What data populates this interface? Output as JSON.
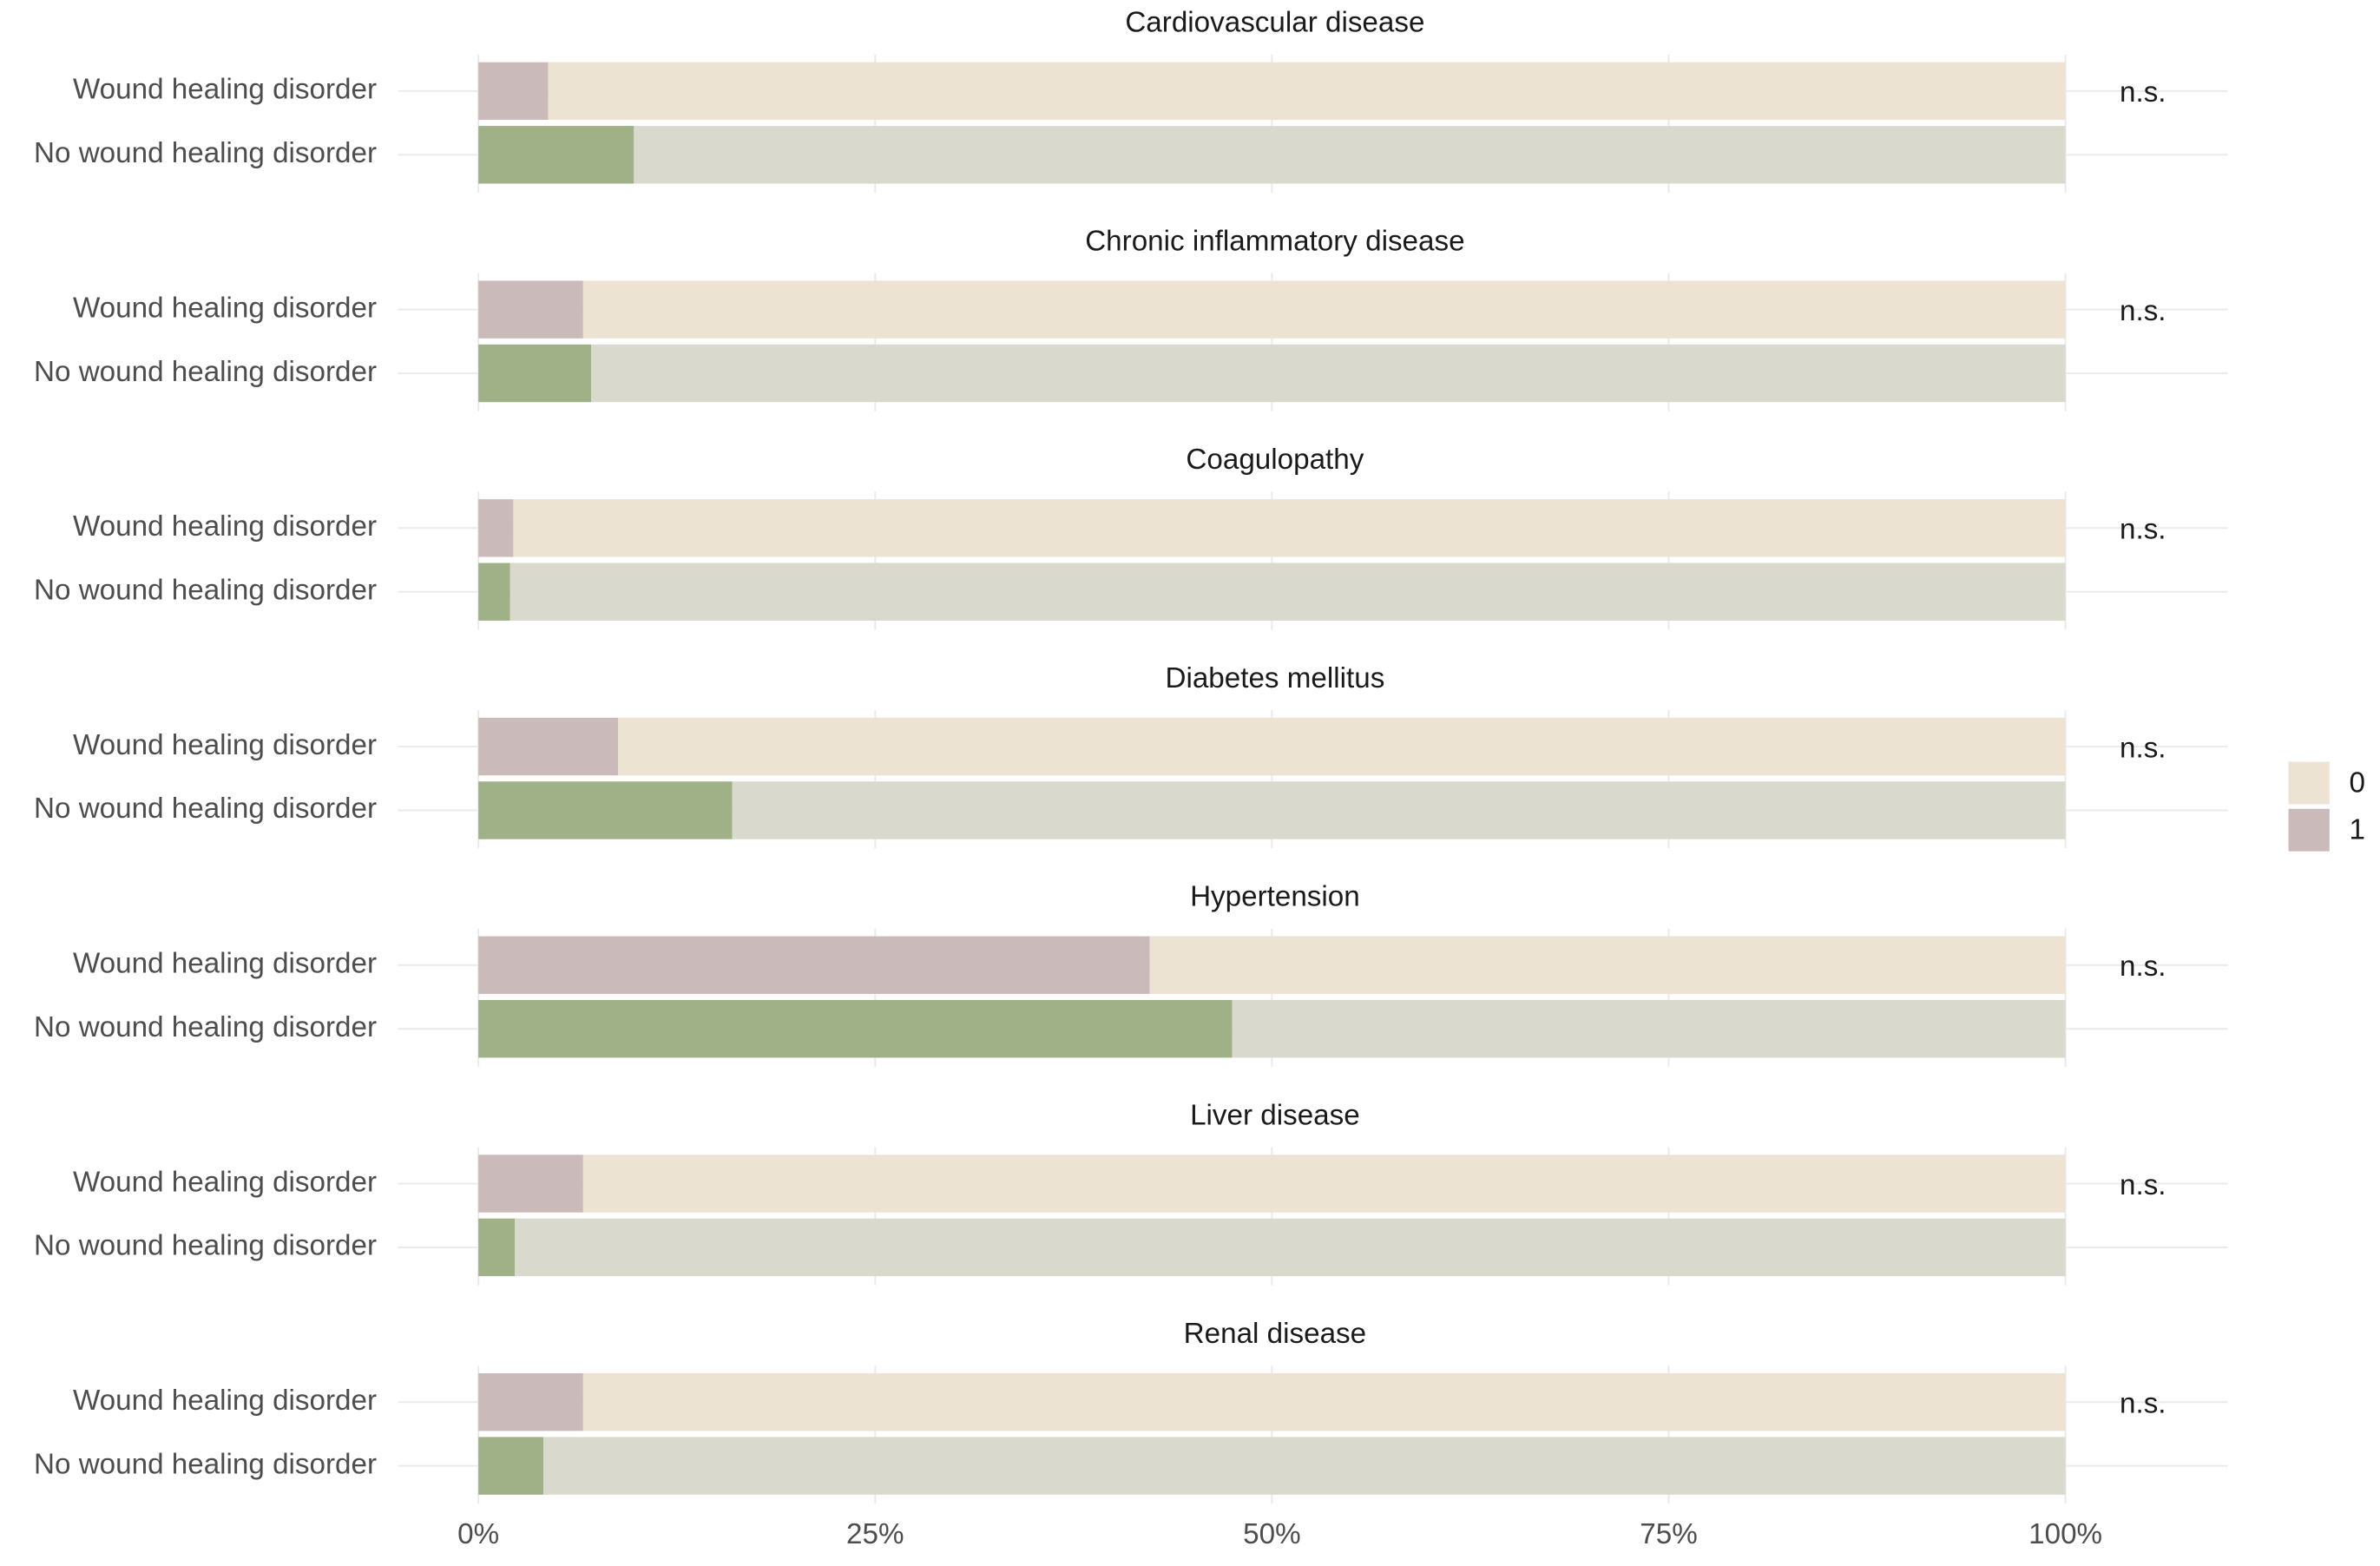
{
  "chart_data": {
    "type": "bar",
    "orientation": "horizontal",
    "stacked": true,
    "grid": true,
    "legend_position": "right",
    "categories": [
      "Wound healing disorder",
      "No wound healing disorder"
    ],
    "series": [
      {
        "name": "0",
        "colors": [
          "#ede3d2",
          "#d9d9cd"
        ]
      },
      {
        "name": "1",
        "colors": [
          "#cbbaba",
          "#a0b187"
        ]
      }
    ],
    "xlim": [
      0,
      100
    ],
    "xticks": [
      {
        "value": 0,
        "label": "0%"
      },
      {
        "value": 25,
        "label": "25%"
      },
      {
        "value": 50,
        "label": "50%"
      },
      {
        "value": 75,
        "label": "75%"
      },
      {
        "value": 100,
        "label": "100%"
      }
    ],
    "facets": [
      {
        "title": "Cardiovascular disease",
        "annotation": "n.s.",
        "series": [
          {
            "values": [
              95.6,
              90.2
            ]
          },
          {
            "values": [
              4.4,
              9.8
            ]
          }
        ]
      },
      {
        "title": "Chronic inflammatory disease",
        "annotation": "n.s.",
        "series": [
          {
            "values": [
              93.4,
              92.9
            ]
          },
          {
            "values": [
              6.6,
              7.1
            ]
          }
        ]
      },
      {
        "title": "Coagulopathy",
        "annotation": "n.s.",
        "series": [
          {
            "values": [
              97.8,
              98.0
            ]
          },
          {
            "values": [
              2.2,
              2.0
            ]
          }
        ]
      },
      {
        "title": "Diabetes mellitus",
        "annotation": "n.s.",
        "series": [
          {
            "values": [
              91.2,
              84.0
            ]
          },
          {
            "values": [
              8.8,
              16.0
            ]
          }
        ]
      },
      {
        "title": "Hypertension",
        "annotation": "n.s.",
        "series": [
          {
            "values": [
              57.7,
              52.5
            ]
          },
          {
            "values": [
              42.3,
              47.5
            ]
          }
        ]
      },
      {
        "title": "Liver disease",
        "annotation": "n.s.",
        "series": [
          {
            "values": [
              93.4,
              97.7
            ]
          },
          {
            "values": [
              6.6,
              2.3
            ]
          }
        ]
      },
      {
        "title": "Renal disease",
        "annotation": "n.s.",
        "series": [
          {
            "values": [
              93.4,
              95.9
            ]
          },
          {
            "values": [
              6.6,
              4.1
            ]
          }
        ]
      }
    ]
  }
}
